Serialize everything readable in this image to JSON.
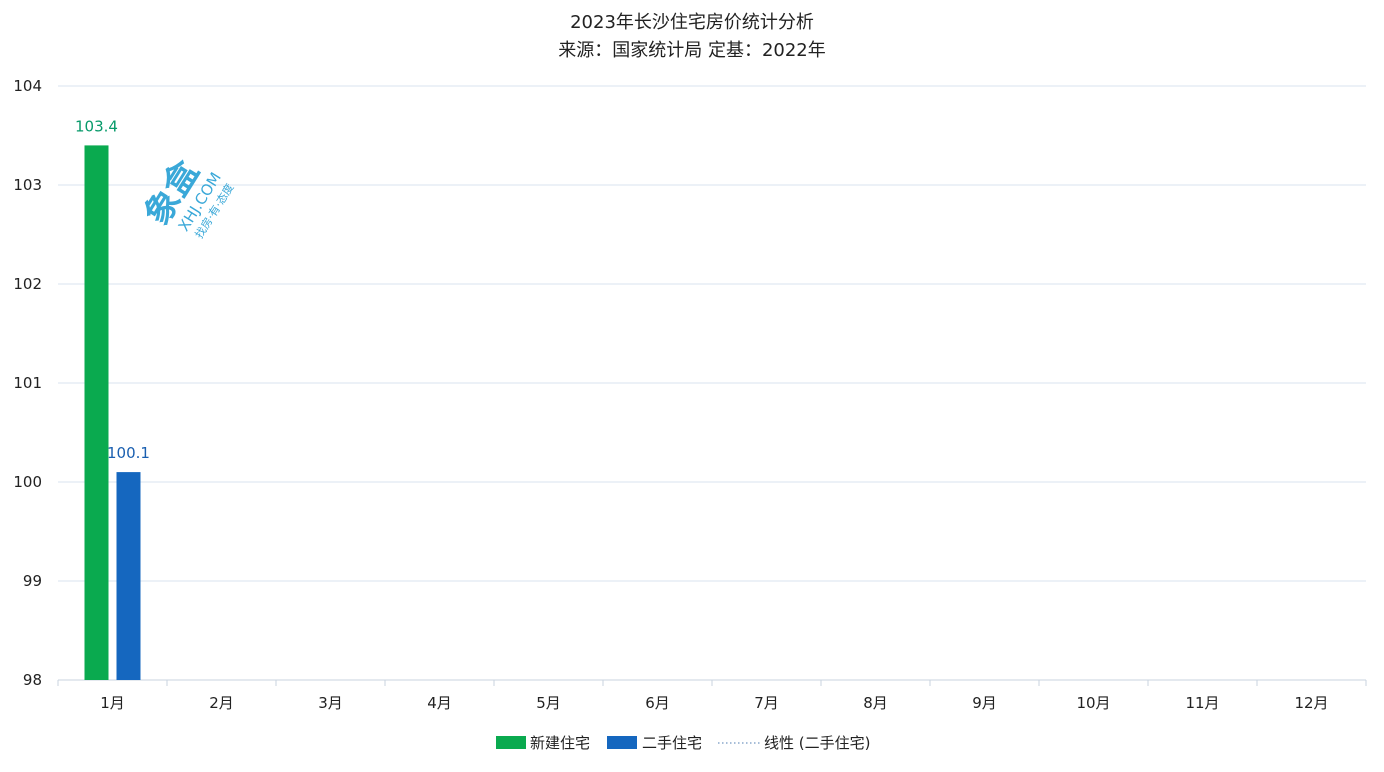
{
  "chart_data": {
    "type": "bar",
    "title": "2023年长沙住宅房价统计分析",
    "subtitle": "来源：国家统计局 定基：2022年",
    "categories": [
      "1月",
      "2月",
      "3月",
      "4月",
      "5月",
      "6月",
      "7月",
      "8月",
      "9月",
      "10月",
      "11月",
      "12月"
    ],
    "series": [
      {
        "name": "新建住宅",
        "values": [
          103.4,
          null,
          null,
          null,
          null,
          null,
          null,
          null,
          null,
          null,
          null,
          null
        ],
        "color": "#0aaa4f",
        "label_color": "#079a6a"
      },
      {
        "name": "二手住宅",
        "values": [
          100.1,
          null,
          null,
          null,
          null,
          null,
          null,
          null,
          null,
          null,
          null,
          null
        ],
        "color": "#1567bf",
        "label_color": "#1a5fb0"
      }
    ],
    "trendline": {
      "name": "线性 (二手住宅)",
      "style": "dotted"
    },
    "ylim": [
      98,
      104
    ],
    "yticks": [
      "98",
      "99",
      "100",
      "101",
      "102",
      "103",
      "104"
    ],
    "data_labels": [
      "103.4",
      "100.1"
    ],
    "grid": true,
    "legend": "bottom"
  },
  "watermark": {
    "brand": "象盒找房",
    "text": "XHJ.COM",
    "slogan": "找房·有·态度",
    "color": "#3aa8d8"
  }
}
